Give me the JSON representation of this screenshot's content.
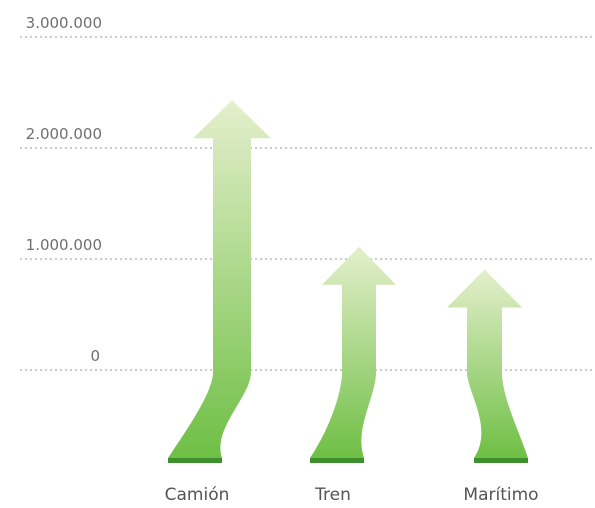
{
  "chart_data": {
    "type": "bar",
    "categories": [
      "Camión",
      "Tren",
      "Marítimo"
    ],
    "values": [
      2430000,
      1110000,
      905000
    ],
    "ylim": [
      0,
      3000000
    ],
    "yticks": [
      "0",
      "1.000.000",
      "2.000.000",
      "3.000.000"
    ],
    "ytick_values": [
      0,
      1000000,
      2000000,
      3000000
    ],
    "grid": true,
    "title": "",
    "xlabel": "",
    "ylabel": "",
    "colors": {
      "arrow_top": "#e4efcc",
      "arrow_bottom": "#6fbf45",
      "base": "#3e8f2e",
      "grid": "#9a9a9a",
      "tick_text": "#6f6f6f",
      "category_text": "#555555"
    }
  }
}
